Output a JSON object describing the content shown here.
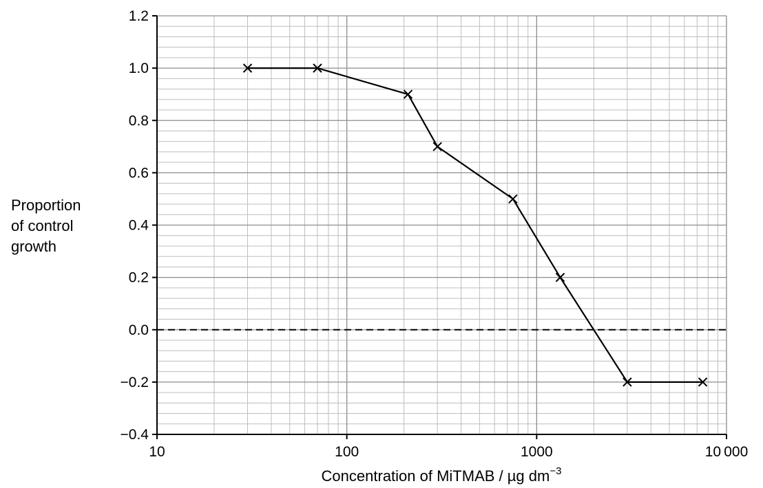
{
  "chart_data": {
    "type": "line",
    "x_scale": "log",
    "xlabel": "Concentration of MiTMAB / µg dm",
    "xlabel_superscript": "−3",
    "ylabel_lines": [
      "Proportion",
      "of control",
      "growth"
    ],
    "xlim": [
      10,
      10000
    ],
    "ylim": [
      -0.4,
      1.2
    ],
    "x_tick_values": [
      10,
      100,
      1000,
      10000
    ],
    "x_tick_labels": [
      "10",
      "100",
      "1000",
      "10 000"
    ],
    "y_tick_values": [
      1.2,
      1.0,
      0.8,
      0.6,
      0.4,
      0.2,
      0.0,
      -0.2,
      -0.4
    ],
    "y_tick_labels": [
      "1.2",
      "1.0",
      "0.8",
      "0.6",
      "0.4",
      "0.2",
      "0.0",
      "−0.2",
      "−0.4"
    ],
    "grid": true,
    "reference_line": {
      "y": 0.0,
      "style": "dashed"
    },
    "marker": "x",
    "series": [
      {
        "x": [
          30,
          70,
          210,
          300,
          750,
          1330,
          3000,
          7500
        ],
        "y": [
          1.0,
          1.0,
          0.9,
          0.7,
          0.5,
          0.2,
          -0.2,
          -0.2
        ]
      }
    ]
  }
}
